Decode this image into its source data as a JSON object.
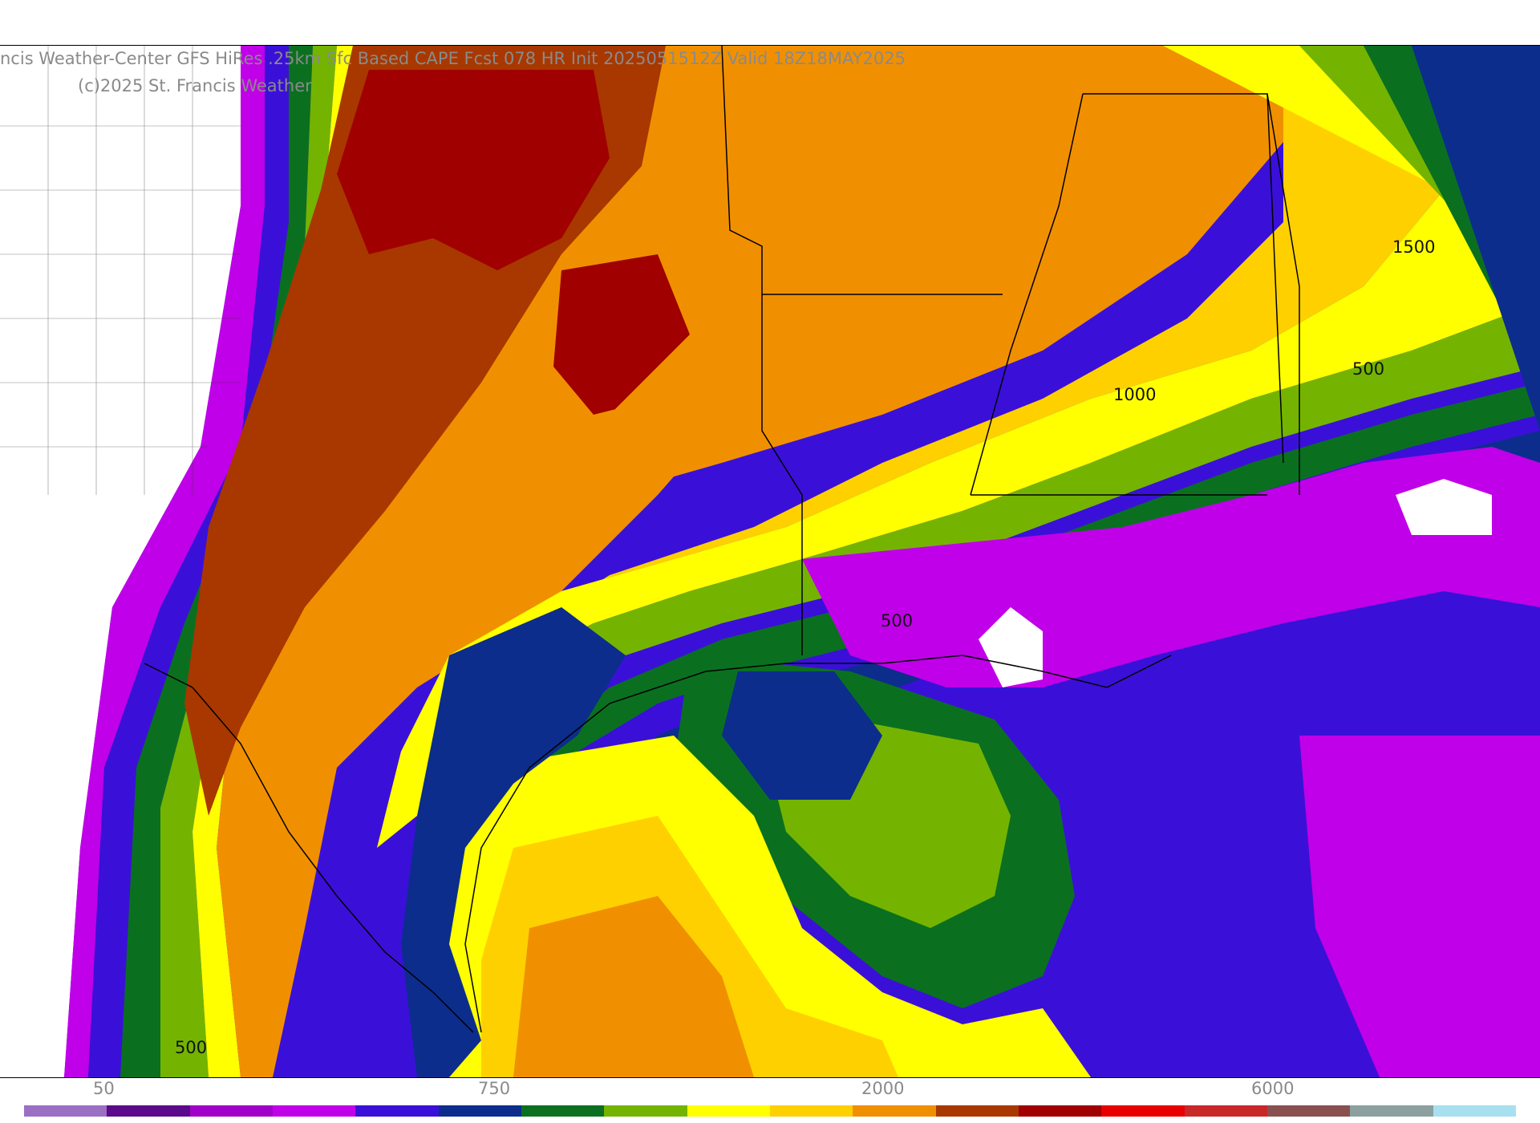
{
  "title": {
    "main": "ncis Weather-Center GFS HiRes .25km Sfc Based CAPE  Fcst 078 HR Init 2025051512Z  Valid 18Z18MAY2025",
    "copyright": "(c)2025 St. Francis Weather"
  },
  "contour_labels": [
    "1500",
    "500",
    "1000",
    "500",
    "500"
  ],
  "colorbar": {
    "tick_labels": [
      "50",
      "750",
      "2000",
      "6000"
    ],
    "colors": [
      "#9b6fc4",
      "#5a0a8a",
      "#a000c8",
      "#c000e8",
      "#3a10d8",
      "#0c2d8c",
      "#0a7020",
      "#74b400",
      "#ffff00",
      "#ffd000",
      "#f09000",
      "#a83800",
      "#a00000",
      "#e80000",
      "#c82828",
      "#8a5050",
      "#8ca0a0",
      "#a8e0f0"
    ]
  },
  "palette": {
    "coast": "#000000",
    "county": "#3a3a3a",
    "plain": "#ffffff"
  }
}
